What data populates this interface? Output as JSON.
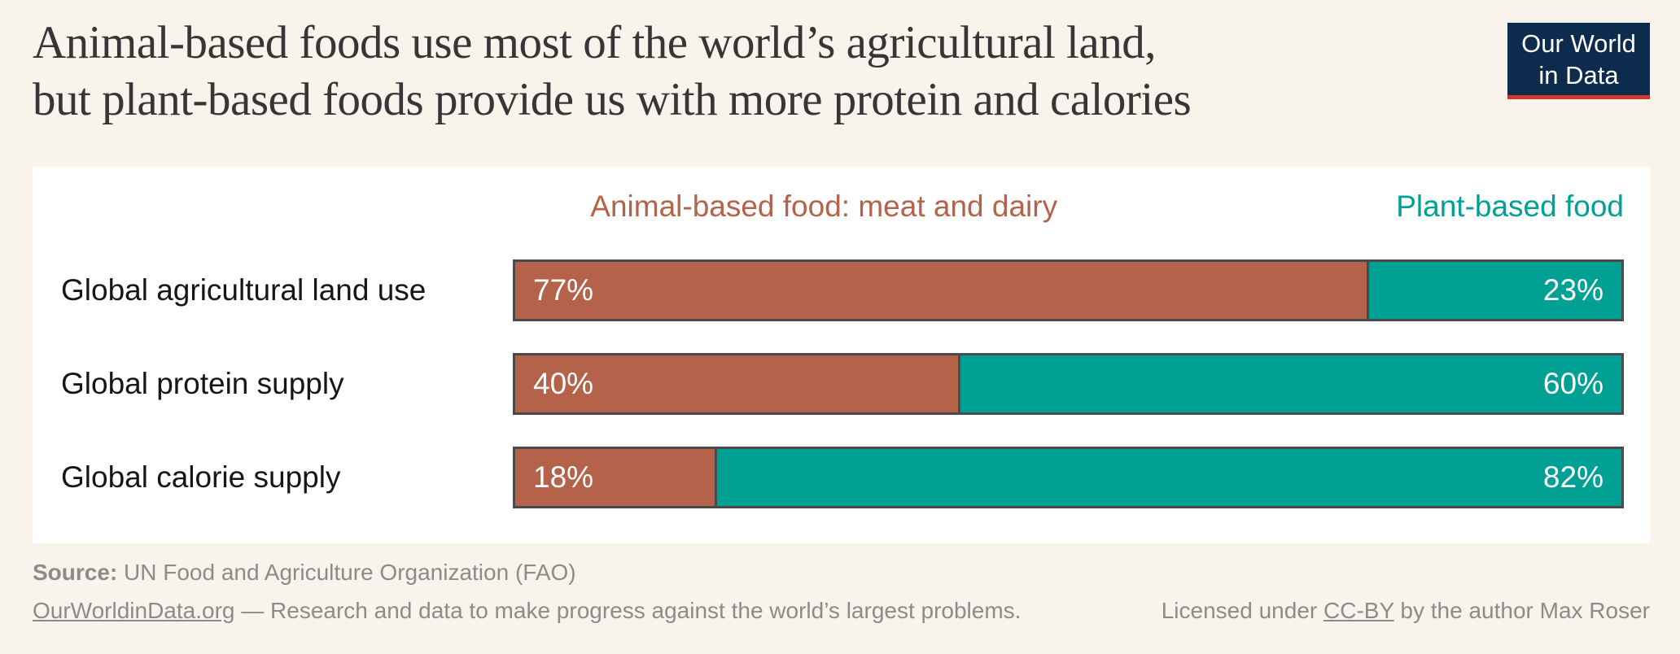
{
  "header": {
    "title_line1": "Animal-based foods use most of the world’s agricultural land,",
    "title_line2": "but plant-based foods provide us with more protein and calories",
    "logo": {
      "line1": "Our World",
      "line2": "in Data"
    }
  },
  "chart_data": {
    "type": "bar",
    "orientation": "horizontal",
    "stacked": true,
    "grid": false,
    "legend_position": "top",
    "xlim": [
      0,
      100
    ],
    "value_suffix": "%",
    "categories": [
      "Global agricultural land use",
      "Global protein supply",
      "Global calorie supply"
    ],
    "series": [
      {
        "name": "Animal-based food: meat and dairy",
        "color": "#b5624a",
        "values": [
          77,
          40,
          18
        ]
      },
      {
        "name": "Plant-based food",
        "color": "#00a194",
        "values": [
          23,
          60,
          82
        ]
      }
    ]
  },
  "colors": {
    "background": "#f8f4ec",
    "card": "#ffffff",
    "bar_border": "#4a4a4a",
    "logo_navy": "#0d2b4d",
    "logo_red": "#d8352d",
    "footer_gray": "#8b8b8b",
    "title_text": "#363636"
  },
  "footer": {
    "source_label": "Source:",
    "source_text": " UN Food and Agriculture Organization (FAO)",
    "site_link": "OurWorldinData.org",
    "site_tagline": " — Research and data to make progress against the world’s largest problems.",
    "license_prefix": "Licensed under ",
    "license_link": "CC-BY",
    "license_suffix": " by the author Max Roser"
  }
}
